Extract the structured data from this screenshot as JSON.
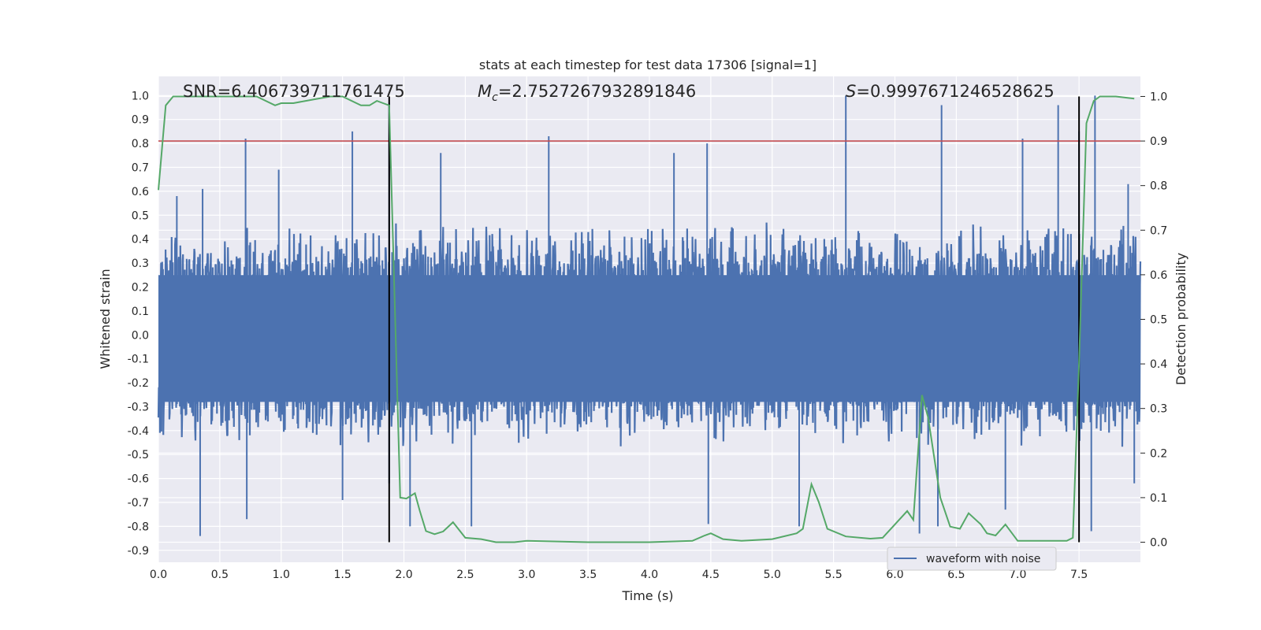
{
  "chart_data": {
    "type": "line",
    "title": "stats at each timestep for test data 17306 [signal=1]",
    "xlabel": "Time (s)",
    "ylabel": "Whitened strain",
    "y2label": "Detection probability",
    "xlim": [
      0.0,
      8.0
    ],
    "ylim": [
      -0.95,
      1.08
    ],
    "y2lim": [
      -0.045,
      1.045
    ],
    "xticks": [
      "0.0",
      "0.5",
      "1.0",
      "1.5",
      "2.0",
      "2.5",
      "3.0",
      "3.5",
      "4.0",
      "4.5",
      "5.0",
      "5.5",
      "6.0",
      "6.5",
      "7.0",
      "7.5"
    ],
    "yticks": [
      "1.0",
      "0.9",
      "0.8",
      "0.7",
      "0.6",
      "0.5",
      "0.4",
      "0.3",
      "0.2",
      "0.1",
      "0.0",
      "-0.1",
      "-0.2",
      "-0.3",
      "-0.4",
      "-0.5",
      "-0.6",
      "-0.7",
      "-0.8",
      "-0.9"
    ],
    "y2ticks": [
      "1.0",
      "0.9",
      "0.8",
      "0.7",
      "0.6",
      "0.5",
      "0.4",
      "0.3",
      "0.2",
      "0.1",
      "0.0"
    ],
    "annotations": {
      "snr": "SNR=6.406739711761475",
      "mc_symbol": "M",
      "mc_sub": "c",
      "mc_value": "=2.7527267932891846",
      "s_symbol": "S",
      "s_value": "=0.9997671246528625"
    },
    "threshold": 0.9,
    "vertical_lines": [
      1.88,
      7.5
    ],
    "legend": {
      "label": "waveform with noise",
      "location": "lower-right"
    },
    "series": [
      {
        "name": "waveform with noise",
        "color": "#4c72b0",
        "description_note": "dense noisy strain signal, envelope approx ±0.45 with spikes",
        "peaks": [
          [
            0.15,
            0.58
          ],
          [
            0.36,
            0.61
          ],
          [
            0.71,
            0.82
          ],
          [
            0.98,
            0.69
          ],
          [
            1.58,
            0.85
          ],
          [
            1.88,
            0.97
          ],
          [
            2.3,
            0.76
          ],
          [
            3.18,
            0.83
          ],
          [
            4.2,
            0.76
          ],
          [
            4.47,
            0.8
          ],
          [
            5.6,
            1.0
          ],
          [
            6.38,
            0.96
          ],
          [
            7.04,
            0.82
          ],
          [
            7.33,
            0.96
          ],
          [
            7.5,
            0.85
          ],
          [
            7.63,
            1.0
          ],
          [
            7.9,
            0.63
          ]
        ],
        "troughs": [
          [
            0.34,
            -0.84
          ],
          [
            0.72,
            -0.77
          ],
          [
            1.5,
            -0.69
          ],
          [
            1.88,
            -0.62
          ],
          [
            2.05,
            -0.8
          ],
          [
            2.55,
            -0.8
          ],
          [
            4.48,
            -0.79
          ],
          [
            5.22,
            -0.8
          ],
          [
            6.2,
            -0.83
          ],
          [
            6.35,
            -0.8
          ],
          [
            6.9,
            -0.73
          ],
          [
            7.6,
            -0.82
          ],
          [
            7.95,
            -0.62
          ]
        ]
      },
      {
        "name": "Detection probability",
        "color": "#55a868",
        "axis": "right",
        "x": [
          0.0,
          0.06,
          0.12,
          0.3,
          0.5,
          0.8,
          0.95,
          1.0,
          1.1,
          1.2,
          1.4,
          1.5,
          1.65,
          1.72,
          1.78,
          1.83,
          1.88,
          1.97,
          2.02,
          2.09,
          2.13,
          2.18,
          2.25,
          2.32,
          2.4,
          2.5,
          2.63,
          2.75,
          2.9,
          3.0,
          3.5,
          4.0,
          4.35,
          4.45,
          4.5,
          4.6,
          4.75,
          5.0,
          5.2,
          5.25,
          5.32,
          5.38,
          5.45,
          5.6,
          5.8,
          5.9,
          6.0,
          6.1,
          6.15,
          6.22,
          6.27,
          6.37,
          6.45,
          6.53,
          6.6,
          6.7,
          6.75,
          6.82,
          6.9,
          7.0,
          7.15,
          7.4,
          7.45,
          7.5,
          7.56,
          7.62,
          7.67,
          7.8,
          7.95
        ],
        "values": [
          0.79,
          0.98,
          1.0,
          1.0,
          1.0,
          1.0,
          0.98,
          0.985,
          0.985,
          0.99,
          1.0,
          1.0,
          0.98,
          0.98,
          0.99,
          0.985,
          0.98,
          0.1,
          0.098,
          0.11,
          0.07,
          0.025,
          0.018,
          0.024,
          0.045,
          0.01,
          0.007,
          0.0,
          0.0,
          0.003,
          0.0,
          0.0,
          0.003,
          0.015,
          0.02,
          0.007,
          0.003,
          0.007,
          0.02,
          0.03,
          0.13,
          0.09,
          0.03,
          0.013,
          0.008,
          0.01,
          0.04,
          0.07,
          0.05,
          0.33,
          0.28,
          0.1,
          0.035,
          0.03,
          0.065,
          0.04,
          0.02,
          0.015,
          0.04,
          0.003,
          0.003,
          0.003,
          0.01,
          0.4,
          0.94,
          0.99,
          1.0,
          1.0,
          0.995
        ]
      }
    ]
  }
}
